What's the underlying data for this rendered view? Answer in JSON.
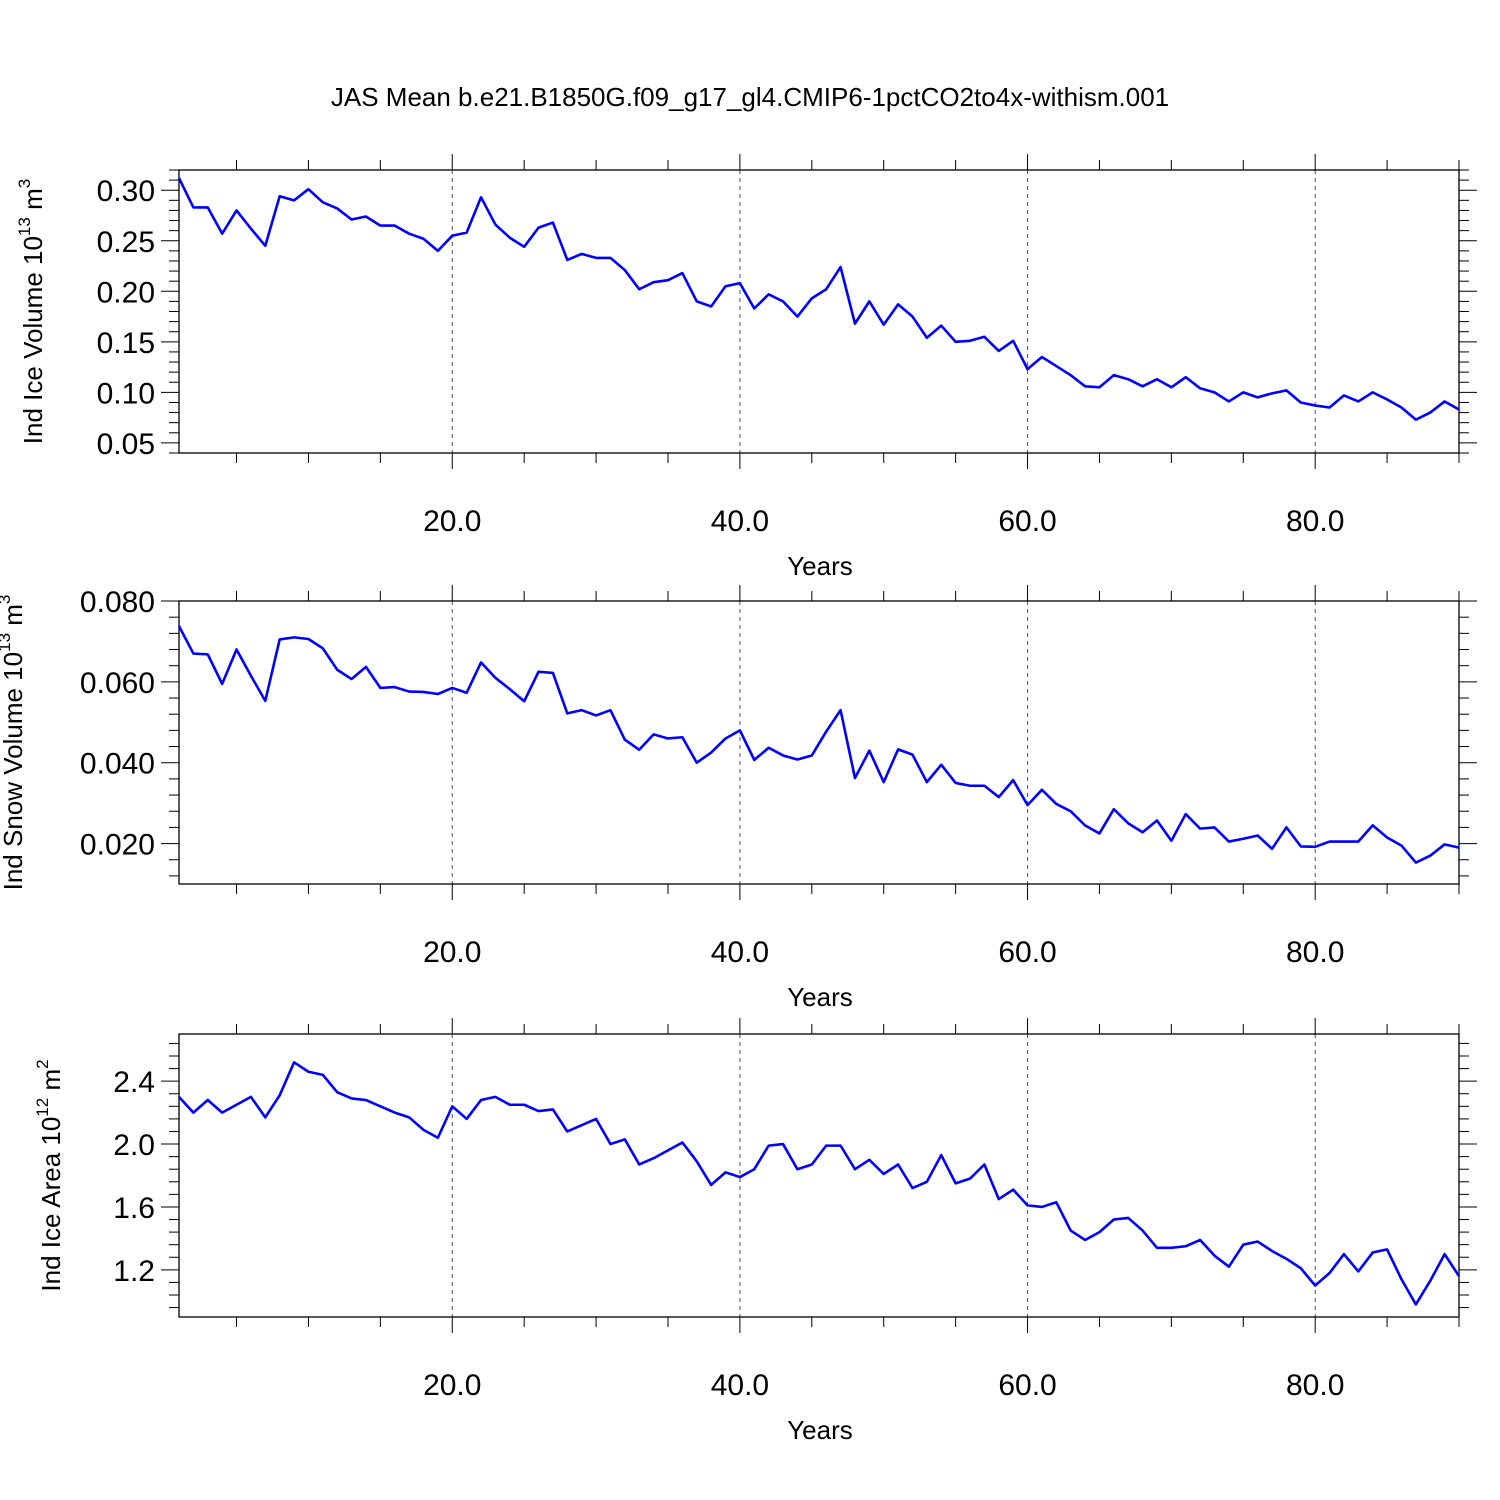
{
  "title": "JAS Mean b.e21.B1850G.f09_g17_gl4.CMIP6-1pctCO2to4x-withism.001",
  "colors": {
    "line": "#0000ff",
    "axis": "#000000",
    "grid": "#555555"
  },
  "chart_data": [
    {
      "type": "line",
      "ylabel_main": "Ind Ice Volume 10",
      "ylabel_exp": "13",
      "ylabel_unit": " m",
      "ylabel_unit_exp": "3",
      "xlabel": "Years",
      "xlim": [
        1,
        90
      ],
      "ylim": [
        0.04,
        0.32
      ],
      "yticks": [
        "0.05",
        "0.10",
        "0.15",
        "0.20",
        "0.25",
        "0.30"
      ],
      "xticks": [
        "20.0",
        "40.0",
        "60.0",
        "80.0"
      ],
      "grid": "x-dashed",
      "series": [
        {
          "values": [
            0.312,
            0.283,
            0.283,
            0.257,
            0.28,
            0.262,
            0.245,
            0.294,
            0.29,
            0.301,
            0.288,
            0.282,
            0.271,
            0.274,
            0.265,
            0.265,
            0.257,
            0.252,
            0.24,
            0.255,
            0.258,
            0.293,
            0.266,
            0.253,
            0.244,
            0.263,
            0.268,
            0.231,
            0.237,
            0.233,
            0.233,
            0.221,
            0.202,
            0.209,
            0.211,
            0.218,
            0.19,
            0.185,
            0.205,
            0.208,
            0.183,
            0.197,
            0.19,
            0.175,
            0.193,
            0.202,
            0.224,
            0.168,
            0.19,
            0.167,
            0.187,
            0.175,
            0.154,
            0.166,
            0.15,
            0.151,
            0.155,
            0.141,
            0.151,
            0.123,
            0.135,
            0.126,
            0.117,
            0.106,
            0.105,
            0.117,
            0.113,
            0.106,
            0.113,
            0.105,
            0.115,
            0.104,
            0.1,
            0.091,
            0.1,
            0.095,
            0.099,
            0.102,
            0.09,
            0.087,
            0.085,
            0.097,
            0.091,
            0.1,
            0.093,
            0.085,
            0.073,
            0.08,
            0.091,
            0.083
          ]
        }
      ]
    },
    {
      "type": "line",
      "ylabel_main": "Ind Snow Volume 10",
      "ylabel_exp": "13",
      "ylabel_unit": " m",
      "ylabel_unit_exp": "3",
      "xlabel": "Years",
      "xlim": [
        1,
        90
      ],
      "ylim": [
        0.01,
        0.08
      ],
      "yticks": [
        "0.020",
        "0.040",
        "0.060",
        "0.080"
      ],
      "xticks": [
        "20.0",
        "40.0",
        "60.0",
        "80.0"
      ],
      "grid": "x-dashed",
      "series": [
        {
          "values": [
            0.0738,
            0.067,
            0.0668,
            0.0595,
            0.068,
            0.0615,
            0.0553,
            0.0705,
            0.071,
            0.0706,
            0.0683,
            0.063,
            0.0607,
            0.0637,
            0.0585,
            0.0587,
            0.0576,
            0.0575,
            0.057,
            0.0585,
            0.0573,
            0.0648,
            0.061,
            0.0582,
            0.0552,
            0.0625,
            0.0622,
            0.0522,
            0.053,
            0.0517,
            0.053,
            0.0457,
            0.0432,
            0.047,
            0.046,
            0.0463,
            0.04,
            0.0425,
            0.046,
            0.048,
            0.0407,
            0.0437,
            0.0418,
            0.0408,
            0.0418,
            0.0477,
            0.053,
            0.0362,
            0.043,
            0.0352,
            0.0433,
            0.042,
            0.0352,
            0.0395,
            0.035,
            0.0343,
            0.0343,
            0.0315,
            0.0357,
            0.0295,
            0.0333,
            0.0298,
            0.028,
            0.0245,
            0.0225,
            0.0285,
            0.025,
            0.0228,
            0.0257,
            0.0207,
            0.0273,
            0.0237,
            0.024,
            0.0205,
            0.0212,
            0.022,
            0.0187,
            0.024,
            0.0193,
            0.0192,
            0.0205,
            0.0205,
            0.0205,
            0.0245,
            0.0215,
            0.0195,
            0.0153,
            0.017,
            0.0198,
            0.019
          ]
        }
      ]
    },
    {
      "type": "line",
      "ylabel_main": "Ind Ice Area 10",
      "ylabel_exp": "12",
      "ylabel_unit": " m",
      "ylabel_unit_exp": "2",
      "xlabel": "Years",
      "xlim": [
        1,
        90
      ],
      "ylim": [
        0.9,
        2.7
      ],
      "yticks": [
        "1.2",
        "1.6",
        "2.0",
        "2.4"
      ],
      "xticks": [
        "20.0",
        "40.0",
        "60.0",
        "80.0"
      ],
      "grid": "x-dashed",
      "series": [
        {
          "values": [
            2.3,
            2.2,
            2.28,
            2.2,
            2.25,
            2.3,
            2.17,
            2.31,
            2.52,
            2.46,
            2.44,
            2.33,
            2.29,
            2.28,
            2.24,
            2.2,
            2.17,
            2.09,
            2.04,
            2.24,
            2.16,
            2.28,
            2.3,
            2.25,
            2.25,
            2.21,
            2.22,
            2.08,
            2.12,
            2.16,
            2.0,
            2.03,
            1.87,
            1.91,
            1.96,
            2.01,
            1.89,
            1.74,
            1.82,
            1.79,
            1.84,
            1.99,
            2.0,
            1.84,
            1.87,
            1.99,
            1.99,
            1.84,
            1.9,
            1.81,
            1.87,
            1.72,
            1.76,
            1.93,
            1.75,
            1.78,
            1.87,
            1.65,
            1.71,
            1.61,
            1.6,
            1.63,
            1.45,
            1.39,
            1.44,
            1.52,
            1.53,
            1.45,
            1.34,
            1.34,
            1.35,
            1.39,
            1.29,
            1.22,
            1.36,
            1.38,
            1.32,
            1.27,
            1.21,
            1.1,
            1.18,
            1.3,
            1.19,
            1.31,
            1.33,
            1.14,
            0.98,
            1.13,
            1.3,
            1.16
          ]
        }
      ]
    }
  ]
}
